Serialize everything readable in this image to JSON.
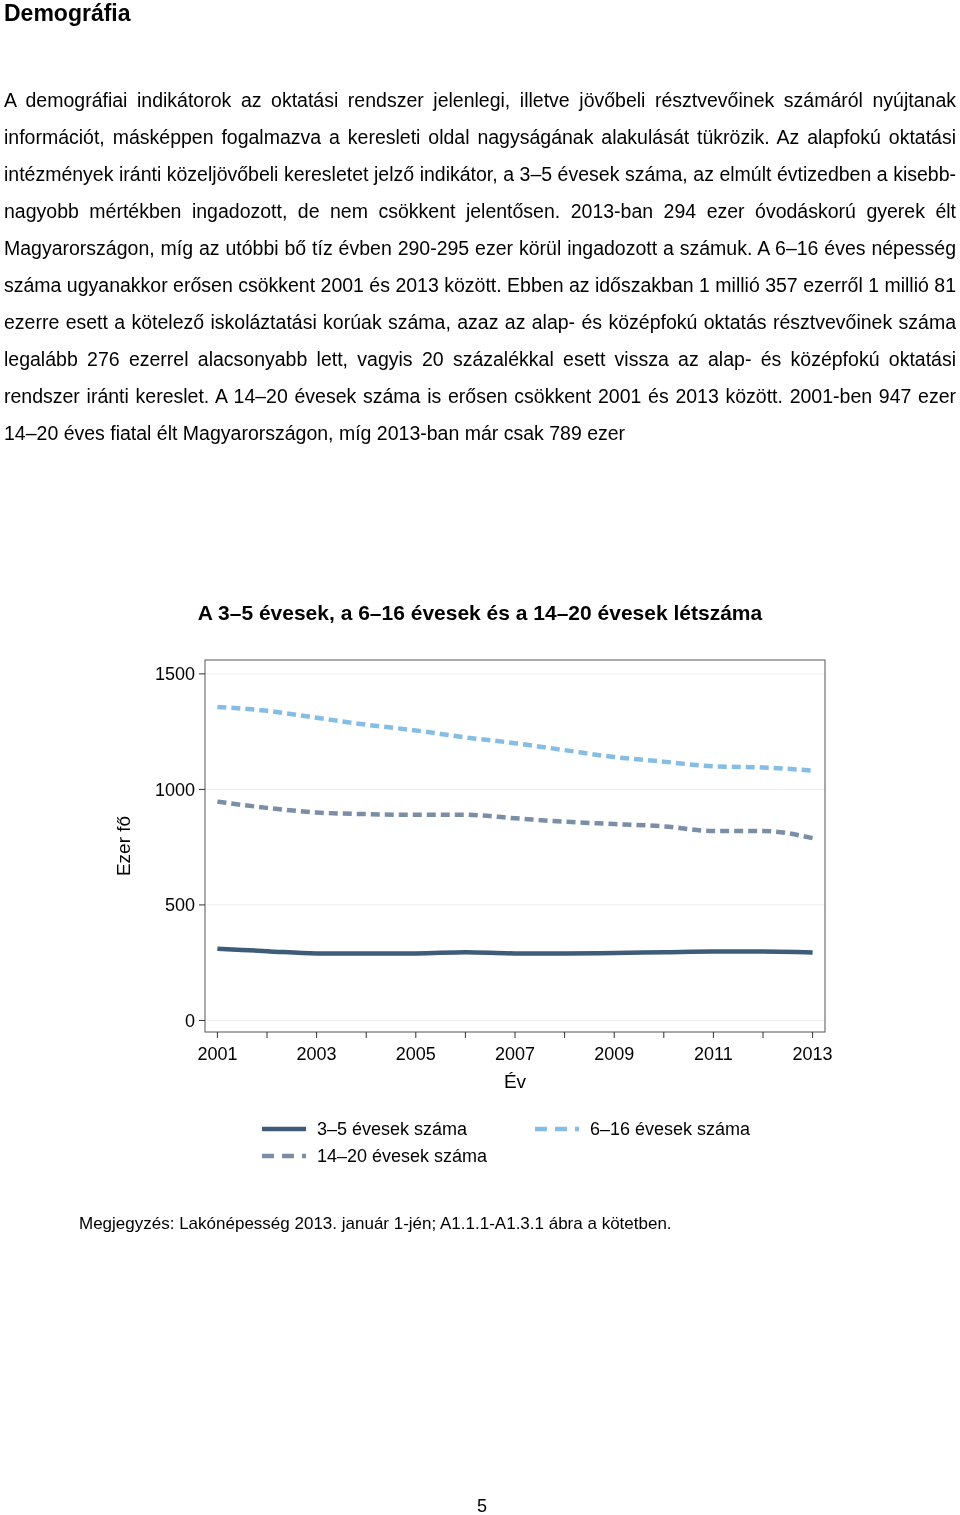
{
  "chart_data": {
    "type": "line",
    "title": "A 3–5 évesek, a 6–16 évesek és a 14–20 évesek létszáma",
    "xlabel": "Év",
    "ylabel": "Ezer fő",
    "annotations": [
      "Demográfia",
      "A demográfiai indikátorok az oktatási rendszer jelenlegi, illetve jövőbeli résztvevőinek számáról nyújtanak információt, másképpen fogalmazva a keresleti oldal nagyságának alakulását tükrözik. Az alapfokú oktatási intézmények iránti közeljövőbeli keresletet jelző indikátor, a 3–5 évesek száma, az elmúlt évtizedben a kisebb-nagyobb mértékben ingadozott, de nem csökkent jelentősen. 2013-ban 294 ezer óvodáskorú gyerek élt Magyarországon, míg az utóbbi bő tíz évben 290-295 ezer körül ingadozott a számuk. A 6–16 éves népesség száma ugyanakkor erősen csökkent 2001 és 2013 között. Ebben az időszakban 1 millió 357 ezerről 1 millió 81 ezerre esett a kötelező iskoláztatási korúak száma, azaz az alap- és középfokú oktatás résztvevőinek száma legalább 276 ezerrel alacsonyabb lett, vagyis 20 százalékkal esett vissza az alap- és középfokú oktatási rendszer iránti kereslet. A 14–20 évesek száma is erősen csökkent 2001 és 2013 között. 2001-ben 947 ezer 14–20 éves fiatal élt Magyarországon, míg 2013-ban már csak 789 ezer",
      "Megjegyzés: Lakónépesség 2013. január 1-jén; A1.1.1-A1.3.1 ábra a kötetben.",
      "5"
    ],
    "x": [
      2001,
      2002,
      2003,
      2004,
      2005,
      2006,
      2007,
      2008,
      2009,
      2010,
      2011,
      2012,
      2013
    ],
    "xlim": [
      2000.75,
      2013.25
    ],
    "xticks": [
      2001,
      {
        "value": 2002,
        "label": null
      },
      2003,
      {
        "value": 2004,
        "label": null
      },
      2005,
      {
        "value": 2006,
        "label": null
      },
      2007,
      {
        "value": 2008,
        "label": null
      },
      2009,
      {
        "value": 2010,
        "label": null
      },
      2011,
      {
        "value": 2012,
        "label": null
      },
      2013
    ],
    "ylim": [
      -50,
      1560
    ],
    "yticks": [
      0,
      500,
      1000,
      1500
    ],
    "grid": "y",
    "legend": "bottom",
    "series": [
      {
        "name": "3–5 évesek száma",
        "color": "#3e5b78",
        "line_style": "solid",
        "values": [
          310,
          300,
          290,
          290,
          290,
          295,
          290,
          290,
          292,
          295,
          298,
          298,
          294
        ]
      },
      {
        "name": "6–16 évesek száma",
        "color": "#86bde4",
        "line_style": "dashed",
        "values": [
          1357,
          1340,
          1310,
          1280,
          1255,
          1225,
          1200,
          1170,
          1140,
          1120,
          1100,
          1095,
          1081
        ]
      },
      {
        "name": "14–20 évesek száma",
        "color": "#7a8ea6",
        "line_style": "dashed",
        "values": [
          947,
          920,
          900,
          893,
          890,
          890,
          875,
          860,
          850,
          840,
          820,
          820,
          789
        ]
      }
    ]
  }
}
